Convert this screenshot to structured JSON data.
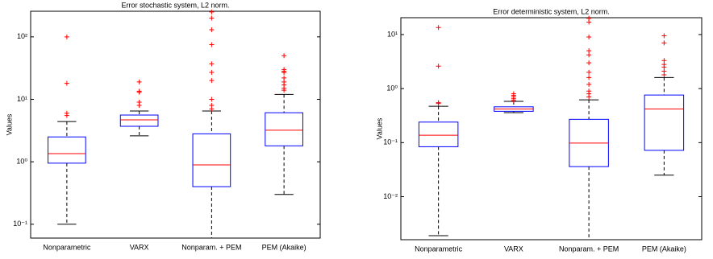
{
  "chart_data": [
    {
      "type": "box",
      "title": "Error stochastic system, L2 norm.",
      "y_label": "Values",
      "log_y": true,
      "ylim": [
        0.06,
        257
      ],
      "yticks": [
        {
          "value": 0.1,
          "label": "10⁻¹"
        },
        {
          "value": 1,
          "label": "10⁰"
        },
        {
          "value": 10,
          "label": "10¹"
        },
        {
          "value": 100,
          "label": "10²"
        }
      ],
      "box_color": "#0000ff",
      "median_color": "#ff0000",
      "outlier_color": "#ff0000",
      "categories": [
        "Nonparametric",
        "VARX",
        "Nonparam. + PEM",
        "PEM (Akaike)"
      ],
      "boxes": [
        {
          "min": 0.1,
          "q1": 0.95,
          "median": 1.35,
          "q3": 2.5,
          "max": 4.4,
          "outliers": [
            100,
            18,
            6,
            5.5
          ]
        },
        {
          "min": 2.6,
          "q1": 3.7,
          "median": 4.7,
          "q3": 5.6,
          "max": 6.5,
          "outliers": [
            19,
            13.5,
            13,
            9,
            8
          ]
        },
        {
          "min": 0.06,
          "q1": 0.4,
          "median": 0.89,
          "q3": 2.8,
          "max": 6.5,
          "outliers": [
            250,
            200,
            130,
            75,
            37,
            27,
            20,
            10,
            8,
            7
          ]
        },
        {
          "min": 0.3,
          "q1": 1.8,
          "median": 3.2,
          "q3": 6.1,
          "max": 12,
          "outliers": [
            50,
            30,
            28,
            27,
            22,
            19,
            17,
            15,
            14
          ]
        }
      ]
    },
    {
      "type": "box",
      "title": "Error deterministic system, L2 norm.",
      "y_label": "Values",
      "log_y": true,
      "ylim": [
        0.0016,
        20.5
      ],
      "yticks": [
        {
          "value": 0.01,
          "label": "10⁻²"
        },
        {
          "value": 0.1,
          "label": "10⁻¹"
        },
        {
          "value": 1,
          "label": "10⁰"
        },
        {
          "value": 10,
          "label": "10¹"
        }
      ],
      "box_color": "#0000ff",
      "median_color": "#ff0000",
      "outlier_color": "#ff0000",
      "categories": [
        "Nonparametric",
        "VARX",
        "Nonparam. + PEM",
        "PEM (Akaike)"
      ],
      "boxes": [
        {
          "min": 0.0019,
          "q1": 0.084,
          "median": 0.137,
          "q3": 0.24,
          "max": 0.47,
          "outliers": [
            13.5,
            2.6,
            0.55,
            0.53
          ]
        },
        {
          "min": 0.36,
          "q1": 0.38,
          "median": 0.42,
          "q3": 0.46,
          "max": 0.58,
          "outliers": [
            0.8,
            0.75,
            0.7,
            0.65,
            0.6
          ]
        },
        {
          "min": 0.0016,
          "q1": 0.036,
          "median": 0.098,
          "q3": 0.27,
          "max": 0.62,
          "outliers": [
            20,
            17,
            9,
            5,
            4.2,
            3,
            2,
            1.6,
            1.2,
            0.9,
            0.8,
            0.7
          ]
        },
        {
          "min": 0.025,
          "q1": 0.072,
          "median": 0.42,
          "q3": 0.76,
          "max": 1.6,
          "outliers": [
            9.5,
            7,
            3.3,
            2.8,
            2.5,
            2.1,
            1.8
          ]
        }
      ]
    }
  ]
}
